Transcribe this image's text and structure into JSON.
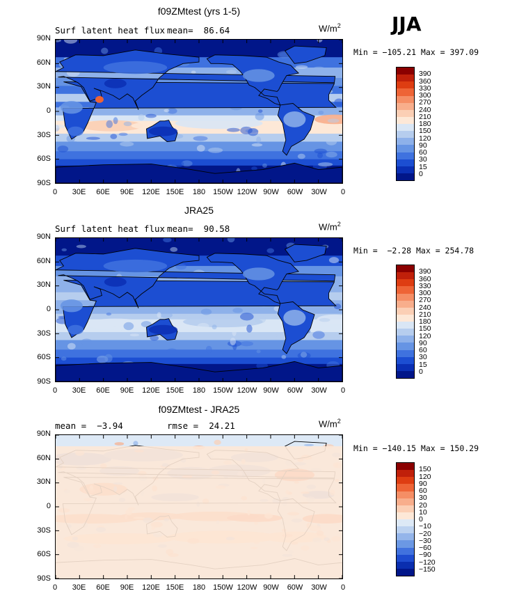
{
  "season": "JJA",
  "units_base": "W/m",
  "units_exp": "2",
  "lat_labels": [
    "90N",
    "60N",
    "30N",
    "0",
    "30S",
    "60S",
    "90S"
  ],
  "lon_labels": [
    "0",
    "30E",
    "60E",
    "90E",
    "120E",
    "150E",
    "180",
    "150W",
    "120W",
    "90W",
    "60W",
    "30W",
    "0"
  ],
  "panels": [
    {
      "title": "f09ZMtest (yrs 1-5)",
      "sub_left": "Surf latent heat flux",
      "sub_right": "mean=  86.64",
      "minmax": "Min = −105.21 Max = 397.09",
      "type": "abs",
      "colorbar_labels": [
        "390",
        "360",
        "330",
        "300",
        "270",
        "240",
        "210",
        "180",
        "150",
        "120",
        "90",
        "60",
        "30",
        "15",
        "0"
      ]
    },
    {
      "title": "JRA25",
      "sub_left": "Surf latent heat flux",
      "sub_right": "mean=  90.58",
      "minmax": "Min =  −2.28 Max = 254.78",
      "type": "abs",
      "colorbar_labels": [
        "390",
        "360",
        "330",
        "300",
        "270",
        "240",
        "210",
        "180",
        "150",
        "120",
        "90",
        "60",
        "30",
        "15",
        "0"
      ]
    },
    {
      "title": "f09ZMtest - JRA25",
      "sub_left": "mean =  −3.94",
      "sub_right": "rmse =  24.21",
      "minmax": "Min = −140.15 Max = 150.29",
      "type": "diff",
      "colorbar_labels": [
        "150",
        "120",
        "90",
        "60",
        "30",
        "20",
        "10",
        "0",
        "−10",
        "−20",
        "−30",
        "−60",
        "−90",
        "−120",
        "−150"
      ]
    }
  ],
  "colors": {
    "abs": [
      "#8b0000",
      "#c0200a",
      "#de3d12",
      "#ee6436",
      "#f58e65",
      "#f8ae8c",
      "#fbcfb5",
      "#fde8d7",
      "#d9e6f5",
      "#b6cdee",
      "#8eb1ea",
      "#6694e4",
      "#3f72df",
      "#1c4ed2",
      "#0a2fb4",
      "#011689"
    ],
    "diff": [
      "#8b0000",
      "#c0200a",
      "#de3d12",
      "#ee6436",
      "#f58e65",
      "#f8ae8c",
      "#fbcfb5",
      "#fde8d7",
      "#dde9f6",
      "#bcd2f0",
      "#94b5ea",
      "#6b98e4",
      "#4172de",
      "#1e4ccf",
      "#0a2eaf",
      "#011689"
    ]
  }
}
